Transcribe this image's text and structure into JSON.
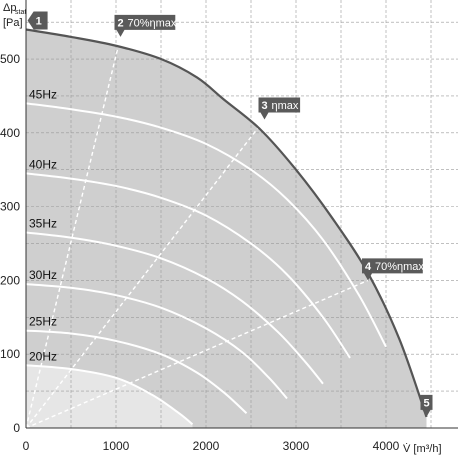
{
  "chart_data": {
    "type": "line",
    "title": "",
    "ylabel_top": "Δp",
    "ylabel_sub": "stat",
    "ylabel_unit": "[Pa]",
    "xlabel": "V̇ [m³/h]",
    "xlim": [
      0,
      4800
    ],
    "ylim": [
      0,
      580
    ],
    "xticks": [
      0,
      1000,
      2000,
      3000,
      4000
    ],
    "yticks": [
      0,
      100,
      200,
      300,
      400,
      500
    ],
    "grid": true,
    "colors": {
      "area": "#cfcfcf",
      "inner_area": "#e6e6e6",
      "max_curve": "#555555",
      "freq_curves": "#ffffff",
      "marker": "#5a5a5a"
    },
    "max_curve": {
      "x": [
        0,
        500,
        1000,
        1500,
        1900,
        2200,
        2600,
        3000,
        3400,
        3800,
        4150,
        4450
      ],
      "y": [
        540,
        530,
        518,
        500,
        475,
        445,
        405,
        350,
        285,
        210,
        120,
        15
      ]
    },
    "frequency_curves": [
      {
        "name": "45Hz",
        "x": [
          0,
          500,
          1000,
          1500,
          2000,
          2500,
          2900,
          3300,
          3700,
          4000
        ],
        "y": [
          440,
          432,
          422,
          407,
          385,
          350,
          310,
          255,
          180,
          110
        ]
      },
      {
        "name": "40Hz",
        "x": [
          0,
          500,
          1000,
          1500,
          2000,
          2500,
          2900,
          3300,
          3600
        ],
        "y": [
          345,
          338,
          328,
          312,
          288,
          250,
          208,
          150,
          95
        ]
      },
      {
        "name": "35Hz",
        "x": [
          0,
          500,
          1000,
          1500,
          2000,
          2400,
          2800,
          3100,
          3300
        ],
        "y": [
          265,
          258,
          247,
          230,
          203,
          172,
          130,
          90,
          60
        ]
      },
      {
        "name": "30Hz",
        "x": [
          0,
          500,
          1000,
          1500,
          2000,
          2400,
          2700,
          2900
        ],
        "y": [
          195,
          190,
          180,
          163,
          135,
          103,
          68,
          40
        ]
      },
      {
        "name": "25Hz",
        "x": [
          0,
          500,
          1000,
          1500,
          1900,
          2200,
          2450
        ],
        "y": [
          132,
          128,
          118,
          100,
          75,
          48,
          20
        ]
      },
      {
        "name": "20Hz",
        "x": [
          0,
          500,
          1000,
          1400,
          1700,
          1850
        ],
        "y": [
          85,
          80,
          68,
          45,
          20,
          5
        ]
      }
    ],
    "efficiency_lines": [
      {
        "name": "2 70%ηmax",
        "x": [
          0,
          1050
        ],
        "y": [
          0,
          530
        ]
      },
      {
        "name": "3 ηmax",
        "x": [
          0,
          2650
        ],
        "y": [
          0,
          418
        ]
      },
      {
        "name": "4 70%ηmax",
        "x": [
          0,
          3800
        ],
        "y": [
          0,
          200
        ]
      }
    ],
    "markers": [
      {
        "id": "1",
        "label": "",
        "x": 40,
        "y": 540
      },
      {
        "id": "2",
        "label": "70%ηmax",
        "x": 1050,
        "y": 530
      },
      {
        "id": "3",
        "label": "ηmax",
        "x": 2650,
        "y": 418
      },
      {
        "id": "4",
        "label": "70%ηmax",
        "x": 3800,
        "y": 200
      },
      {
        "id": "5",
        "label": "",
        "x": 4450,
        "y": 15
      }
    ]
  }
}
